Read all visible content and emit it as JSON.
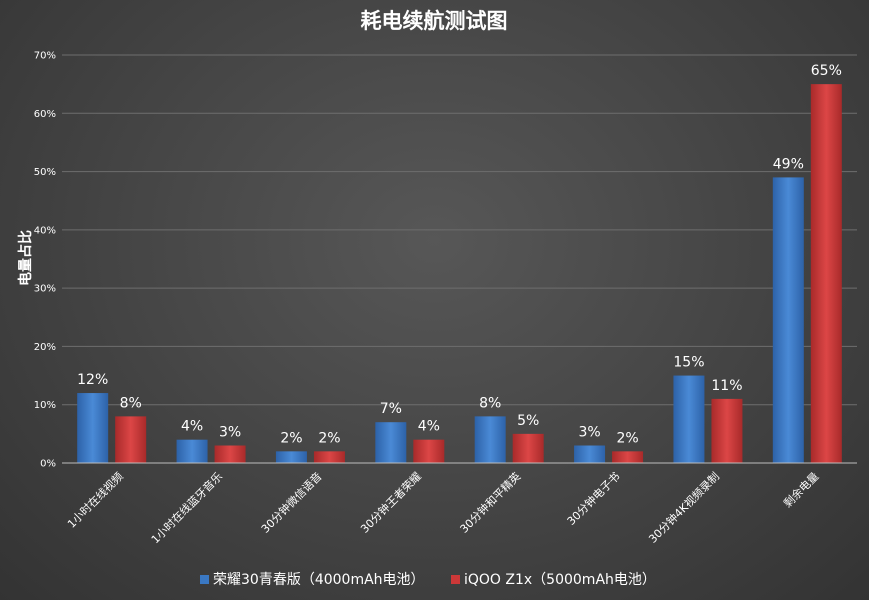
{
  "chart_data": {
    "type": "bar",
    "title": "耗电续航测试图",
    "xlabel": "",
    "ylabel": "电量占比",
    "ylim": [
      0,
      70
    ],
    "yticks": [
      "0%",
      "10%",
      "20%",
      "30%",
      "40%",
      "50%",
      "60%",
      "70%"
    ],
    "grid": true,
    "legend_position": "bottom",
    "categories": [
      "1小时在线视频",
      "1小时在线蓝牙音乐",
      "30分钟微信语音",
      "30分钟王者荣耀",
      "30分钟和平精英",
      "30分钟电子书",
      "30分钟4K视频录制",
      "剩余电量"
    ],
    "series": [
      {
        "name": "荣耀30青春版（4000mAh电池）",
        "color": "#3a78c3",
        "values": [
          12,
          4,
          2,
          7,
          8,
          3,
          15,
          49
        ],
        "labels": [
          "12%",
          "4%",
          "2%",
          "7%",
          "8%",
          "3%",
          "15%",
          "49%"
        ]
      },
      {
        "name": "iQOO Z1x（5000mAh电池）",
        "color": "#cc3838",
        "values": [
          8,
          3,
          2,
          4,
          5,
          2,
          11,
          65
        ],
        "labels": [
          "8%",
          "3%",
          "2%",
          "4%",
          "5%",
          "2%",
          "11%",
          "65%"
        ]
      }
    ]
  }
}
